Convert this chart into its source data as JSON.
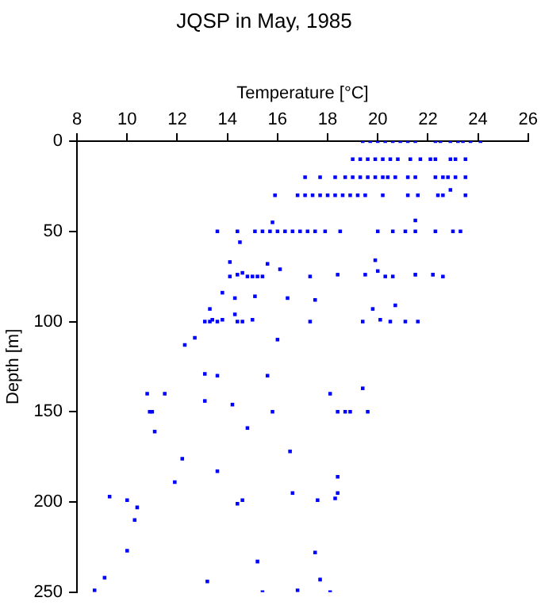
{
  "chart_data": {
    "type": "scatter",
    "title": "JQSP in May, 1985",
    "xlabel": "Temperature [°C]",
    "ylabel": "Depth [m]",
    "xlim": [
      8,
      26
    ],
    "xticks": [
      8,
      10,
      12,
      14,
      16,
      18,
      20,
      22,
      24,
      26
    ],
    "ylim": [
      250,
      0
    ],
    "yticks": [
      0,
      50,
      100,
      150,
      200,
      250
    ],
    "grid": false,
    "legend": false,
    "marker": "square",
    "series": [
      {
        "color": "#0000ff",
        "x": [
          19.4,
          19.7,
          20.0,
          20.3,
          20.6,
          20.9,
          21.2,
          21.5,
          22.3,
          22.5,
          22.9,
          23.2,
          23.4,
          23.7,
          24.1,
          19.0,
          19.3,
          19.6,
          19.9,
          20.2,
          20.5,
          20.8,
          21.3,
          21.7,
          22.1,
          22.3,
          22.9,
          23.1,
          23.5,
          17.1,
          17.7,
          18.3,
          18.7,
          19.0,
          19.3,
          19.6,
          19.9,
          20.2,
          20.4,
          20.7,
          21.2,
          21.5,
          22.3,
          22.6,
          22.8,
          23.1,
          23.5,
          15.9,
          16.8,
          17.1,
          17.4,
          17.7,
          18.0,
          18.3,
          18.6,
          18.9,
          19.2,
          19.5,
          20.2,
          21.2,
          21.6,
          22.4,
          22.6,
          23.5,
          22.9,
          13.6,
          14.4,
          15.1,
          15.4,
          15.7,
          16.0,
          16.3,
          16.6,
          16.9,
          17.2,
          17.5,
          17.9,
          18.5,
          20.0,
          20.6,
          21.1,
          21.5,
          22.3,
          23.0,
          23.3,
          15.8,
          21.5,
          14.5,
          14.1,
          15.6,
          19.9,
          14.1,
          14.4,
          14.6,
          14.8,
          15.0,
          15.2,
          15.4,
          16.1,
          17.3,
          18.4,
          19.5,
          20.0,
          20.3,
          20.6,
          21.5,
          22.2,
          22.6,
          13.8,
          14.3,
          15.1,
          16.4,
          17.5,
          13.3,
          14.3,
          19.8,
          20.7,
          13.1,
          13.3,
          13.4,
          13.6,
          13.8,
          14.4,
          14.6,
          15.0,
          17.3,
          19.4,
          20.1,
          20.5,
          21.1,
          21.6,
          12.7,
          12.3,
          13.1,
          13.6,
          15.6,
          16.0,
          10.8,
          11.5,
          13.1,
          14.2,
          18.1,
          19.4,
          10.9,
          11.0,
          15.8,
          18.4,
          18.7,
          18.9,
          19.6,
          11.1,
          14.8,
          16.5,
          12.2,
          13.6,
          11.9,
          18.4,
          16.6,
          18.4,
          18.3,
          9.3,
          10.0,
          10.4,
          14.4,
          14.6,
          17.6,
          10.3,
          10.0,
          15.2,
          17.5,
          9.1,
          13.2,
          17.7,
          8.7,
          15.4,
          16.8,
          18.1
        ],
        "values": [
          0,
          0,
          0,
          0,
          0,
          0,
          0,
          0,
          0,
          0,
          0,
          0,
          0,
          0,
          0,
          10,
          10,
          10,
          10,
          10,
          10,
          10,
          10,
          10,
          10,
          10,
          10,
          10,
          10,
          20,
          20,
          20,
          20,
          20,
          20,
          20,
          20,
          20,
          20,
          20,
          20,
          20,
          20,
          20,
          20,
          20,
          20,
          30,
          30,
          30,
          30,
          30,
          30,
          30,
          30,
          30,
          30,
          30,
          30,
          30,
          30,
          30,
          30,
          30,
          27,
          50,
          50,
          50,
          50,
          50,
          50,
          50,
          50,
          50,
          50,
          50,
          50,
          50,
          50,
          50,
          50,
          50,
          50,
          50,
          50,
          45,
          44,
          56,
          67,
          68,
          66,
          75,
          74,
          73,
          75,
          75,
          75,
          75,
          71,
          75,
          74,
          74,
          72,
          75,
          75,
          74,
          74,
          75,
          84,
          87,
          86,
          87,
          88,
          93,
          96,
          93,
          91,
          100,
          100,
          99,
          100,
          99,
          100,
          100,
          99,
          100,
          100,
          99,
          100,
          100,
          100,
          109,
          113,
          129,
          130,
          130,
          110,
          140,
          140,
          144,
          146,
          140,
          137,
          150,
          150,
          150,
          150,
          150,
          150,
          150,
          161,
          159,
          172,
          176,
          183,
          189,
          186,
          195,
          195,
          198,
          197,
          199,
          203,
          201,
          199,
          199,
          210,
          227,
          233,
          228,
          242,
          244,
          243,
          249,
          250,
          249,
          250
        ]
      }
    ]
  }
}
